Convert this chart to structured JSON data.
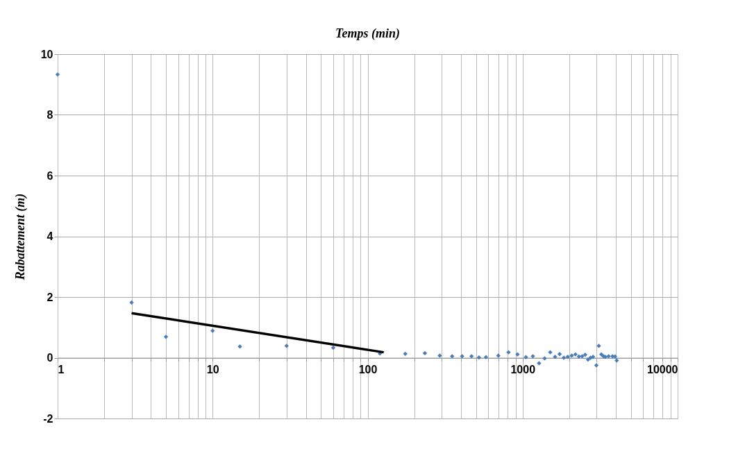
{
  "chart_data": {
    "type": "scatter",
    "xlabel": "Temps (min)",
    "ylabel": "Rabattement (m)",
    "log": "x",
    "grid": true,
    "xlim": [
      1,
      10000
    ],
    "ylim": [
      -2,
      10
    ],
    "yticks": [
      -2,
      0,
      2,
      4,
      6,
      8,
      10
    ],
    "xticks": [
      1,
      {
        "value": 2,
        "label": null
      },
      {
        "value": 3,
        "label": null
      },
      {
        "value": 4,
        "label": null
      },
      {
        "value": 5,
        "label": null
      },
      {
        "value": 6,
        "label": null
      },
      {
        "value": 7,
        "label": null
      },
      {
        "value": 8,
        "label": null
      },
      {
        "value": 9,
        "label": null
      },
      10,
      {
        "value": 20,
        "label": null
      },
      {
        "value": 30,
        "label": null
      },
      {
        "value": 40,
        "label": null
      },
      {
        "value": 50,
        "label": null
      },
      {
        "value": 60,
        "label": null
      },
      {
        "value": 70,
        "label": null
      },
      {
        "value": 80,
        "label": null
      },
      {
        "value": 90,
        "label": null
      },
      100,
      {
        "value": 200,
        "label": null
      },
      {
        "value": 300,
        "label": null
      },
      {
        "value": 400,
        "label": null
      },
      {
        "value": 500,
        "label": null
      },
      {
        "value": 600,
        "label": null
      },
      {
        "value": 700,
        "label": null
      },
      {
        "value": 800,
        "label": null
      },
      {
        "value": 900,
        "label": null
      },
      1000,
      {
        "value": 2000,
        "label": null
      },
      {
        "value": 3000,
        "label": null
      },
      {
        "value": 4000,
        "label": null
      },
      {
        "value": 5000,
        "label": null
      },
      {
        "value": 6000,
        "label": null
      },
      {
        "value": 7000,
        "label": null
      },
      {
        "value": 8000,
        "label": null
      },
      {
        "value": 9000,
        "label": null
      },
      10000
    ],
    "series": [
      {
        "marker": "diamond",
        "color": "#4a7ebb",
        "x": [
          1,
          3,
          5,
          10,
          15,
          30,
          60,
          120,
          175,
          234,
          292,
          351,
          407,
          468,
          523,
          580,
          697,
          811,
          927,
          1050,
          1164,
          1277,
          1387,
          1507,
          1619,
          1733,
          1845,
          1955,
          2073,
          2191,
          2307,
          2421,
          2533,
          2641,
          2743,
          2847,
          2991,
          3102,
          3221,
          3321,
          3418,
          3587,
          3801,
          3948,
          4045
        ],
        "values": [
          9.33,
          1.82,
          0.69,
          0.89,
          0.37,
          0.39,
          0.33,
          0.14,
          0.13,
          0.15,
          0.07,
          0.05,
          0.05,
          0.05,
          0.01,
          0.02,
          0.07,
          0.18,
          0.11,
          0.02,
          0.05,
          -0.18,
          -0.02,
          0.18,
          0.03,
          0.12,
          0.0,
          0.03,
          0.07,
          0.11,
          0.04,
          0.05,
          0.1,
          -0.06,
          0.0,
          0.03,
          -0.25,
          0.39,
          0.11,
          0.05,
          0.03,
          0.05,
          0.05,
          0.04,
          -0.09
        ]
      },
      {
        "type": "line",
        "marker": "none",
        "color": "#000000",
        "x": [
          3,
          127
        ],
        "values": [
          1.47,
          0.18
        ]
      }
    ]
  }
}
